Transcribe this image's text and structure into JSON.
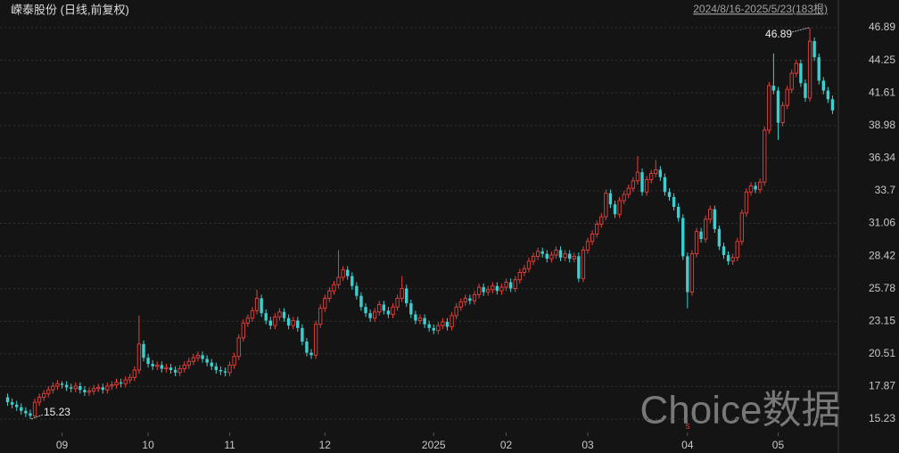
{
  "chart_data": {
    "type": "candlestick",
    "title": "嵘泰股份 (日线,前复权)",
    "subtitle": "2024/8/16-2025/5/23(183根)",
    "watermark": "Choice数据",
    "annotations": [
      {
        "text": "46.89"
      },
      {
        "text": "15.23"
      },
      {
        "text": "S"
      }
    ],
    "up_color": "#e8403a",
    "down_color": "#3ccfcf",
    "grid": true,
    "ylim": [
      14.15,
      47.54
    ],
    "yticks": [
      46.89,
      44.25,
      41.61,
      38.98,
      36.34,
      33.7,
      31.06,
      28.42,
      25.78,
      23.15,
      20.51,
      17.87,
      15.23
    ],
    "categories": [
      null,
      null,
      null,
      null,
      null,
      null,
      null,
      null,
      null,
      null,
      null,
      null,
      "09",
      null,
      null,
      null,
      null,
      null,
      null,
      null,
      null,
      null,
      null,
      null,
      null,
      null,
      null,
      null,
      null,
      null,
      null,
      "10",
      null,
      null,
      null,
      null,
      null,
      null,
      null,
      null,
      null,
      null,
      null,
      null,
      null,
      null,
      null,
      null,
      null,
      "11",
      null,
      null,
      null,
      null,
      null,
      null,
      null,
      null,
      null,
      null,
      null,
      null,
      null,
      null,
      null,
      null,
      null,
      null,
      null,
      null,
      "12",
      null,
      null,
      null,
      null,
      null,
      null,
      null,
      null,
      null,
      null,
      null,
      null,
      null,
      null,
      null,
      null,
      null,
      null,
      null,
      null,
      null,
      null,
      null,
      "2025",
      null,
      null,
      null,
      null,
      null,
      null,
      null,
      null,
      null,
      null,
      null,
      null,
      null,
      null,
      null,
      "02",
      null,
      null,
      null,
      null,
      null,
      null,
      null,
      null,
      null,
      null,
      null,
      null,
      null,
      null,
      null,
      null,
      null,
      "03",
      null,
      null,
      null,
      null,
      null,
      null,
      null,
      null,
      null,
      null,
      null,
      null,
      null,
      null,
      null,
      null,
      null,
      null,
      null,
      null,
      null,
      "04",
      null,
      null,
      null,
      null,
      null,
      null,
      null,
      null,
      null,
      null,
      null,
      null,
      null,
      null,
      null,
      null,
      null,
      null,
      null,
      "05",
      null,
      null,
      null,
      null,
      null,
      null,
      null,
      null,
      null,
      null,
      null,
      null
    ],
    "open": [
      17,
      16.6,
      16.4,
      16.2,
      15.9,
      15.7,
      15.5,
      16.6,
      17.0,
      17.3,
      17.6,
      17.9,
      18.1,
      18.0,
      17.8,
      17.7,
      17.9,
      17.6,
      17.4,
      17.5,
      17.7,
      17.8,
      17.6,
      17.9,
      18.0,
      18.2,
      18.1,
      18.4,
      18.6,
      19.2,
      21.3,
      20.2,
      19.7,
      19.5,
      19.6,
      19.3,
      19.4,
      19.2,
      19.0,
      19.3,
      19.6,
      19.9,
      20.2,
      20.4,
      20.1,
      19.8,
      19.5,
      19.2,
      19.1,
      19.0,
      19.6,
      20.3,
      21.8,
      23.0,
      23.4,
      24.0,
      25.0,
      23.8,
      23.2,
      22.8,
      23.5,
      23.9,
      23.4,
      22.8,
      23.2,
      22.6,
      21.5,
      20.6,
      20.4,
      22.9,
      24.2,
      25.0,
      25.6,
      26.1,
      26.7,
      27.3,
      26.8,
      26.0,
      25.2,
      24.3,
      23.8,
      23.4,
      23.9,
      24.5,
      24.0,
      23.7,
      24.3,
      25.0,
      25.8,
      24.6,
      23.7,
      23.2,
      23.4,
      22.9,
      22.6,
      22.4,
      22.8,
      23.1,
      22.7,
      23.6,
      24.3,
      24.7,
      25.0,
      24.8,
      25.3,
      25.9,
      25.5,
      25.7,
      26.0,
      25.6,
      25.9,
      26.3,
      25.8,
      26.5,
      27.1,
      27.4,
      28.0,
      28.4,
      28.8,
      28.6,
      28.2,
      28.5,
      28.9,
      28.3,
      28.6,
      28.2,
      28.4,
      26.6,
      28.9,
      29.6,
      30.2,
      31.0,
      31.6,
      33.5,
      32.6,
      31.8,
      32.9,
      33.4,
      33.9,
      34.5,
      35.2,
      33.6,
      34.6,
      35.1,
      35.4,
      34.8,
      33.6,
      33.2,
      32.4,
      31.5,
      28.4,
      25.5,
      28.6,
      30.4,
      29.8,
      31.4,
      32.2,
      30.6,
      29.2,
      28.5,
      28.0,
      28.3,
      29.6,
      31.9,
      33.6,
      34.1,
      33.8,
      34.4,
      38.6,
      42.2,
      41.8,
      39.2,
      40.6,
      41.9,
      43.2,
      44.0,
      42.4,
      41.2,
      45.8,
      44.5,
      42.6,
      41.8,
      41.1
    ],
    "close": [
      16.6,
      16.4,
      16.2,
      15.9,
      15.7,
      15.5,
      16.6,
      17.0,
      17.3,
      17.6,
      17.9,
      18.1,
      18.0,
      17.8,
      17.7,
      17.9,
      17.6,
      17.4,
      17.5,
      17.7,
      17.8,
      17.6,
      17.9,
      18.0,
      18.2,
      18.1,
      18.4,
      18.6,
      19.2,
      21.3,
      20.2,
      19.7,
      19.5,
      19.6,
      19.3,
      19.4,
      19.2,
      19.0,
      19.3,
      19.6,
      19.9,
      20.2,
      20.4,
      20.1,
      19.8,
      19.5,
      19.2,
      19.1,
      19.0,
      19.6,
      20.3,
      21.8,
      23.0,
      23.4,
      24.0,
      25.0,
      23.8,
      23.2,
      22.8,
      23.5,
      23.9,
      23.4,
      22.8,
      23.2,
      22.6,
      21.5,
      20.6,
      20.4,
      22.9,
      24.2,
      25.0,
      25.6,
      26.1,
      26.7,
      27.3,
      26.8,
      26.0,
      25.2,
      24.3,
      23.8,
      23.4,
      23.9,
      24.5,
      24.0,
      23.7,
      24.3,
      25.0,
      25.8,
      24.6,
      23.7,
      23.2,
      23.4,
      22.9,
      22.6,
      22.4,
      22.8,
      23.1,
      22.7,
      23.6,
      24.3,
      24.7,
      25.0,
      24.8,
      25.3,
      25.9,
      25.5,
      25.7,
      26.0,
      25.6,
      25.9,
      26.3,
      25.8,
      26.5,
      27.1,
      27.4,
      28.0,
      28.4,
      28.8,
      28.6,
      28.2,
      28.5,
      28.9,
      28.3,
      28.6,
      28.2,
      28.4,
      26.6,
      28.9,
      29.6,
      30.2,
      31.0,
      31.6,
      33.5,
      32.6,
      31.8,
      32.9,
      33.4,
      33.9,
      34.5,
      35.2,
      33.6,
      34.6,
      35.1,
      35.4,
      34.8,
      33.6,
      33.2,
      32.4,
      31.5,
      28.4,
      25.5,
      28.6,
      30.4,
      29.8,
      31.4,
      32.2,
      30.6,
      29.2,
      28.5,
      28.0,
      28.3,
      29.6,
      31.9,
      33.6,
      34.1,
      33.8,
      34.4,
      38.6,
      42.2,
      41.8,
      39.2,
      40.6,
      41.9,
      43.2,
      44.0,
      42.4,
      41.2,
      45.8,
      44.5,
      42.6,
      41.8,
      41.1,
      40.2
    ],
    "high": [
      17.3,
      16.9,
      16.7,
      16.5,
      16.2,
      16.0,
      16.9,
      17.3,
      17.6,
      17.9,
      18.2,
      18.4,
      18.3,
      18.3,
      18.1,
      18.2,
      18.2,
      17.9,
      17.8,
      18.0,
      18.1,
      18.1,
      18.2,
      18.3,
      18.5,
      18.5,
      18.7,
      18.9,
      19.5,
      23.6,
      21.6,
      20.5,
      20.0,
      19.9,
      19.9,
      19.7,
      19.7,
      19.5,
      19.6,
      19.9,
      20.2,
      20.5,
      20.7,
      20.7,
      20.4,
      20.1,
      19.8,
      19.5,
      19.4,
      19.9,
      20.6,
      22.1,
      23.3,
      23.7,
      24.3,
      25.7,
      25.3,
      24.1,
      23.5,
      23.8,
      24.2,
      24.2,
      23.7,
      23.5,
      23.5,
      22.9,
      21.8,
      20.9,
      23.2,
      24.5,
      25.3,
      25.9,
      26.4,
      28.9,
      27.6,
      27.6,
      27.1,
      26.3,
      25.5,
      24.6,
      24.1,
      24.2,
      24.8,
      24.8,
      24.3,
      24.6,
      25.3,
      26.8,
      26.1,
      24.9,
      24.0,
      23.7,
      23.7,
      23.2,
      22.9,
      23.1,
      23.4,
      23.4,
      23.9,
      24.6,
      25.0,
      25.3,
      25.3,
      25.6,
      26.2,
      26.2,
      26.0,
      26.3,
      26.3,
      26.2,
      26.6,
      26.6,
      26.8,
      27.4,
      27.7,
      28.3,
      28.7,
      29.1,
      29.1,
      28.9,
      28.8,
      29.2,
      29.2,
      28.9,
      28.9,
      28.7,
      28.7,
      29.2,
      29.9,
      30.5,
      31.3,
      31.9,
      33.8,
      33.8,
      32.9,
      33.2,
      33.7,
      34.2,
      34.8,
      36.5,
      35.5,
      34.9,
      35.4,
      36.2,
      35.7,
      35.1,
      33.9,
      33.5,
      32.7,
      31.8,
      28.7,
      28.9,
      30.7,
      30.7,
      31.7,
      32.5,
      32.5,
      30.9,
      29.5,
      28.8,
      28.6,
      29.9,
      32.2,
      33.9,
      34.4,
      34.4,
      34.7,
      38.9,
      42.5,
      44.8,
      42.1,
      40.9,
      42.2,
      43.5,
      44.3,
      44.3,
      42.7,
      46.89,
      46.1,
      44.8,
      42.9,
      42.1,
      41.4
    ],
    "low": [
      16.3,
      16.1,
      15.9,
      15.6,
      15.4,
      15.23,
      15.4,
      16.3,
      16.7,
      17.0,
      17.3,
      17.6,
      17.7,
      17.5,
      17.4,
      17.4,
      17.3,
      17.1,
      17.1,
      17.2,
      17.4,
      17.3,
      17.3,
      17.6,
      17.7,
      17.8,
      17.8,
      18.1,
      18.3,
      18.9,
      19.9,
      19.4,
      19.2,
      19.2,
      19.0,
      19.0,
      18.9,
      18.7,
      18.7,
      19.0,
      19.3,
      19.6,
      19.9,
      19.8,
      19.5,
      19.2,
      18.9,
      18.8,
      18.7,
      18.7,
      19.3,
      20.0,
      21.5,
      22.7,
      23.1,
      23.7,
      23.5,
      22.9,
      22.5,
      22.5,
      23.2,
      23.1,
      22.5,
      22.5,
      22.3,
      21.2,
      20.3,
      20.1,
      20.1,
      22.6,
      23.9,
      24.7,
      25.3,
      25.8,
      26.4,
      26.5,
      25.7,
      24.9,
      24.0,
      23.5,
      23.1,
      23.1,
      23.6,
      23.7,
      23.4,
      23.4,
      24.0,
      24.7,
      24.3,
      23.4,
      22.9,
      22.9,
      22.6,
      22.3,
      22.1,
      22.1,
      22.5,
      22.4,
      22.4,
      23.3,
      24.0,
      24.4,
      24.5,
      24.5,
      25.0,
      25.2,
      25.2,
      25.4,
      25.3,
      25.3,
      25.6,
      25.5,
      25.5,
      26.2,
      26.8,
      27.1,
      27.7,
      28.1,
      28.3,
      27.9,
      27.9,
      28.2,
      28.0,
      28.0,
      27.9,
      27.9,
      26.3,
      26.3,
      28.6,
      29.3,
      29.9,
      30.7,
      31.3,
      32.3,
      31.5,
      31.5,
      32.6,
      33.1,
      33.6,
      34.2,
      33.3,
      33.3,
      34.3,
      34.8,
      34.5,
      33.3,
      32.9,
      32.1,
      31.2,
      28.1,
      24.2,
      25.2,
      28.3,
      29.5,
      29.5,
      31.1,
      30.3,
      28.9,
      28.2,
      27.7,
      27.7,
      28.0,
      29.3,
      31.6,
      33.3,
      33.5,
      33.5,
      34.1,
      38.3,
      41.5,
      37.8,
      38.9,
      40.3,
      41.6,
      42.9,
      42.1,
      40.9,
      40.9,
      44.2,
      42.3,
      41.5,
      40.8,
      39.9
    ]
  }
}
